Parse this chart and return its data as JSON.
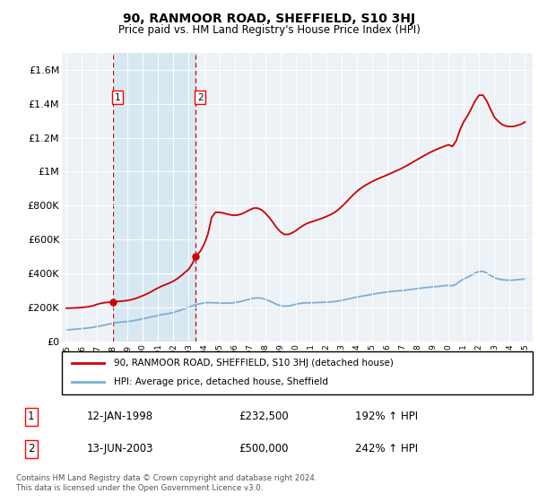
{
  "title": "90, RANMOOR ROAD, SHEFFIELD, S10 3HJ",
  "subtitle": "Price paid vs. HM Land Registry's House Price Index (HPI)",
  "ylabel_ticks": [
    "£0",
    "£200K",
    "£400K",
    "£600K",
    "£800K",
    "£1M",
    "£1.2M",
    "£1.4M",
    "£1.6M"
  ],
  "ytick_values": [
    0,
    200000,
    400000,
    600000,
    800000,
    1000000,
    1200000,
    1400000,
    1600000
  ],
  "ylim": [
    0,
    1700000
  ],
  "xlim_start": 1994.7,
  "xlim_end": 2025.5,
  "sale1_date": 1998.04,
  "sale1_price": 232500,
  "sale2_date": 2003.45,
  "sale2_price": 500000,
  "property_color": "#cc0000",
  "hpi_color": "#7bafd4",
  "background_color": "#edf2f7",
  "shaded_color": "#d0e4f0",
  "legend_label_property": "90, RANMOOR ROAD, SHEFFIELD, S10 3HJ (detached house)",
  "legend_label_hpi": "HPI: Average price, detached house, Sheffield",
  "table_row1": [
    "1",
    "12-JAN-1998",
    "£232,500",
    "192% ↑ HPI"
  ],
  "table_row2": [
    "2",
    "13-JUN-2003",
    "£500,000",
    "242% ↑ HPI"
  ],
  "footer": "Contains HM Land Registry data © Crown copyright and database right 2024.\nThis data is licensed under the Open Government Licence v3.0.",
  "hpi_x": [
    1995.0,
    1995.25,
    1995.5,
    1995.75,
    1996.0,
    1996.25,
    1996.5,
    1996.75,
    1997.0,
    1997.25,
    1997.5,
    1997.75,
    1998.0,
    1998.25,
    1998.5,
    1998.75,
    1999.0,
    1999.25,
    1999.5,
    1999.75,
    2000.0,
    2000.25,
    2000.5,
    2000.75,
    2001.0,
    2001.25,
    2001.5,
    2001.75,
    2002.0,
    2002.25,
    2002.5,
    2002.75,
    2003.0,
    2003.25,
    2003.5,
    2003.75,
    2004.0,
    2004.25,
    2004.5,
    2004.75,
    2005.0,
    2005.25,
    2005.5,
    2005.75,
    2006.0,
    2006.25,
    2006.5,
    2006.75,
    2007.0,
    2007.25,
    2007.5,
    2007.75,
    2008.0,
    2008.25,
    2008.5,
    2008.75,
    2009.0,
    2009.25,
    2009.5,
    2009.75,
    2010.0,
    2010.25,
    2010.5,
    2010.75,
    2011.0,
    2011.25,
    2011.5,
    2011.75,
    2012.0,
    2012.25,
    2012.5,
    2012.75,
    2013.0,
    2013.25,
    2013.5,
    2013.75,
    2014.0,
    2014.25,
    2014.5,
    2014.75,
    2015.0,
    2015.25,
    2015.5,
    2015.75,
    2016.0,
    2016.25,
    2016.5,
    2016.75,
    2017.0,
    2017.25,
    2017.5,
    2017.75,
    2018.0,
    2018.25,
    2018.5,
    2018.75,
    2019.0,
    2019.25,
    2019.5,
    2019.75,
    2020.0,
    2020.25,
    2020.5,
    2020.75,
    2021.0,
    2021.25,
    2021.5,
    2021.75,
    2022.0,
    2022.25,
    2022.5,
    2022.75,
    2023.0,
    2023.25,
    2023.5,
    2023.75,
    2024.0,
    2024.25,
    2024.5,
    2024.75,
    2025.0
  ],
  "hpi_y": [
    68000,
    69000,
    71000,
    73000,
    75000,
    77000,
    80000,
    83000,
    87000,
    91000,
    96000,
    101000,
    106000,
    110000,
    113000,
    115000,
    117000,
    120000,
    124000,
    128000,
    133000,
    138000,
    143000,
    148000,
    153000,
    157000,
    161000,
    165000,
    170000,
    177000,
    185000,
    193000,
    202000,
    210000,
    217000,
    222000,
    226000,
    228000,
    228000,
    227000,
    226000,
    225000,
    225000,
    226000,
    228000,
    232000,
    237000,
    243000,
    249000,
    254000,
    256000,
    254000,
    248000,
    239000,
    229000,
    218000,
    210000,
    207000,
    208000,
    212000,
    218000,
    223000,
    226000,
    227000,
    227000,
    228000,
    229000,
    230000,
    231000,
    232000,
    234000,
    237000,
    241000,
    246000,
    251000,
    256000,
    261000,
    265000,
    269000,
    273000,
    277000,
    281000,
    285000,
    288000,
    291000,
    294000,
    296000,
    298000,
    300000,
    302000,
    305000,
    308000,
    311000,
    314000,
    317000,
    319000,
    321000,
    323000,
    325000,
    328000,
    330000,
    327000,
    337000,
    355000,
    368000,
    378000,
    390000,
    403000,
    412000,
    412000,
    402000,
    388000,
    375000,
    368000,
    363000,
    361000,
    360000,
    361000,
    363000,
    365000,
    368000
  ],
  "prop_x": [
    1995.0,
    1995.25,
    1995.5,
    1995.75,
    1996.0,
    1996.25,
    1996.5,
    1996.75,
    1997.0,
    1997.25,
    1997.5,
    1997.75,
    1998.04,
    1998.25,
    1998.5,
    1998.75,
    1999.0,
    1999.25,
    1999.5,
    1999.75,
    2000.0,
    2000.25,
    2000.5,
    2000.75,
    2001.0,
    2001.25,
    2001.5,
    2001.75,
    2002.0,
    2002.25,
    2002.5,
    2002.75,
    2003.0,
    2003.25,
    2003.45,
    2003.75,
    2004.0,
    2004.25,
    2004.5,
    2004.75,
    2005.0,
    2005.25,
    2005.5,
    2005.75,
    2006.0,
    2006.25,
    2006.5,
    2006.75,
    2007.0,
    2007.25,
    2007.5,
    2007.75,
    2008.0,
    2008.25,
    2008.5,
    2008.75,
    2009.0,
    2009.25,
    2009.5,
    2009.75,
    2010.0,
    2010.25,
    2010.5,
    2010.75,
    2011.0,
    2011.25,
    2011.5,
    2011.75,
    2012.0,
    2012.25,
    2012.5,
    2012.75,
    2013.0,
    2013.25,
    2013.5,
    2013.75,
    2014.0,
    2014.25,
    2014.5,
    2014.75,
    2015.0,
    2015.25,
    2015.5,
    2015.75,
    2016.0,
    2016.25,
    2016.5,
    2016.75,
    2017.0,
    2017.25,
    2017.5,
    2017.75,
    2018.0,
    2018.25,
    2018.5,
    2018.75,
    2019.0,
    2019.25,
    2019.5,
    2019.75,
    2020.0,
    2020.25,
    2020.5,
    2020.75,
    2021.0,
    2021.25,
    2021.5,
    2021.75,
    2022.0,
    2022.25,
    2022.5,
    2022.75,
    2023.0,
    2023.25,
    2023.5,
    2023.75,
    2024.0,
    2024.25,
    2024.5,
    2024.75,
    2025.0
  ],
  "prop_y": [
    195000,
    196000,
    197000,
    198000,
    200000,
    202000,
    205000,
    210000,
    218000,
    224000,
    228000,
    230000,
    232500,
    234000,
    236000,
    238000,
    241000,
    246000,
    252000,
    260000,
    269000,
    279000,
    290000,
    303000,
    315000,
    326000,
    335000,
    344000,
    355000,
    369000,
    386000,
    406000,
    425000,
    460000,
    500000,
    530000,
    570000,
    630000,
    730000,
    760000,
    760000,
    756000,
    750000,
    745000,
    742000,
    745000,
    752000,
    763000,
    775000,
    785000,
    785000,
    775000,
    757000,
    731000,
    702000,
    670000,
    645000,
    630000,
    630000,
    638000,
    651000,
    668000,
    683000,
    695000,
    703000,
    710000,
    718000,
    726000,
    735000,
    745000,
    757000,
    773000,
    793000,
    815000,
    839000,
    862000,
    883000,
    901000,
    916000,
    929000,
    941000,
    952000,
    962000,
    971000,
    981000,
    991000,
    1001000,
    1011000,
    1022000,
    1034000,
    1047000,
    1060000,
    1073000,
    1086000,
    1099000,
    1111000,
    1122000,
    1132000,
    1141000,
    1150000,
    1158000,
    1148000,
    1181000,
    1247000,
    1295000,
    1330000,
    1373000,
    1418000,
    1450000,
    1450000,
    1416000,
    1366000,
    1319000,
    1296000,
    1277000,
    1268000,
    1265000,
    1266000,
    1272000,
    1279000,
    1292000
  ]
}
